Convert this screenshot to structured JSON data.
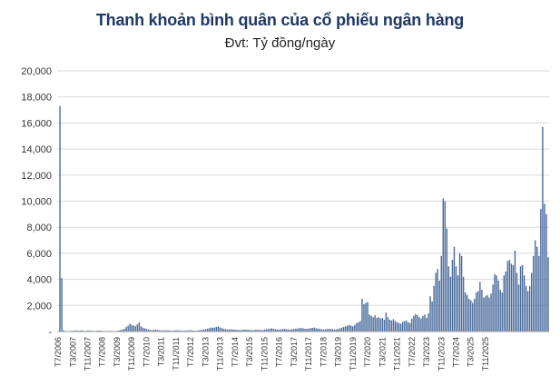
{
  "chart_data": {
    "type": "bar",
    "title": "Thanh khoản bình quân của cổ phiếu ngân hàng",
    "subtitle": "Đvt: Tỷ đồng/ngày",
    "xlabel": "",
    "ylabel": "",
    "ylim": [
      0,
      20000
    ],
    "yticks": [
      "-",
      "2,000",
      "4,000",
      "6,000",
      "8,000",
      "10,000",
      "12,000",
      "14,000",
      "16,000",
      "18,000",
      "20,000"
    ],
    "grid": true,
    "bar_color": "#4a6b9c",
    "x_tick_labels": [
      "T7/2006",
      "T3/2007",
      "T11/2007",
      "T7/2008",
      "T3/2009",
      "T11/2009",
      "T7/2010",
      "T3/2011",
      "T11/2011",
      "T7/2012",
      "T3/2013",
      "T11/2013",
      "T7/2014",
      "T3/2015",
      "T11/2015",
      "T7/2016",
      "T3/2017",
      "T11/2017",
      "T7/2018",
      "T3/2019",
      "T11/2019",
      "T7/2020",
      "T3/2021",
      "T11/2021",
      "T7/2022",
      "T3/2023",
      "T11/2023",
      "T7/2024",
      "T3/2025",
      "T11/2025"
    ],
    "x_start": "2006-07",
    "values": [
      0,
      17300,
      4100,
      100,
      0,
      0,
      0,
      50,
      60,
      80,
      70,
      60,
      70,
      80,
      60,
      50,
      70,
      80,
      60,
      50,
      40,
      60,
      70,
      60,
      50,
      40,
      30,
      40,
      50,
      40,
      30,
      30,
      60,
      80,
      120,
      150,
      200,
      350,
      450,
      600,
      500,
      450,
      400,
      550,
      700,
      400,
      300,
      250,
      200,
      150,
      120,
      100,
      130,
      150,
      120,
      100,
      90,
      80,
      90,
      100,
      80,
      70,
      60,
      80,
      100,
      90,
      80,
      70,
      60,
      70,
      80,
      90,
      100,
      80,
      70,
      60,
      80,
      100,
      120,
      150,
      180,
      200,
      250,
      300,
      280,
      320,
      350,
      380,
      300,
      250,
      200,
      180,
      150,
      160,
      170,
      150,
      140,
      130,
      120,
      110,
      130,
      150,
      140,
      130,
      120,
      110,
      100,
      120,
      140,
      130,
      120,
      110,
      150,
      180,
      200,
      220,
      240,
      200,
      180,
      160,
      150,
      170,
      190,
      200,
      180,
      160,
      150,
      170,
      190,
      210,
      230,
      250,
      270,
      240,
      210,
      200,
      220,
      250,
      280,
      300,
      250,
      220,
      200,
      180,
      160,
      170,
      190,
      210,
      200,
      180,
      160,
      170,
      200,
      250,
      300,
      350,
      400,
      450,
      500,
      450,
      400,
      500,
      650,
      700,
      800,
      2500,
      2100,
      2200,
      2250,
      1300,
      1200,
      1100,
      1250,
      1050,
      1100,
      1000,
      1050,
      900,
      1450,
      1100,
      900,
      850,
      950,
      800,
      700,
      650,
      600,
      750,
      800,
      850,
      700,
      650,
      1000,
      1200,
      1350,
      1250,
      1100,
      1000,
      1200,
      1300,
      1050,
      1400,
      2700,
      2300,
      3500,
      4500,
      4800,
      3900,
      5800,
      10200,
      10000,
      7900,
      5000,
      4200,
      5500,
      6500,
      5000,
      4300,
      6000,
      5800,
      4200,
      3000,
      2800,
      2500,
      2400,
      2200,
      2500,
      3000,
      3100,
      3800,
      3200,
      2600,
      2700,
      2800,
      2600,
      2900,
      3600,
      4400,
      4300,
      3900,
      3200,
      3000,
      4300,
      4600,
      5400,
      5500,
      5200,
      5100,
      6200,
      4500,
      3600,
      5000,
      5100,
      4300,
      3500,
      3100,
      3500,
      4500,
      5800,
      7000,
      6500,
      5800,
      9400,
      15700,
      9800,
      9000,
      5700
    ]
  }
}
